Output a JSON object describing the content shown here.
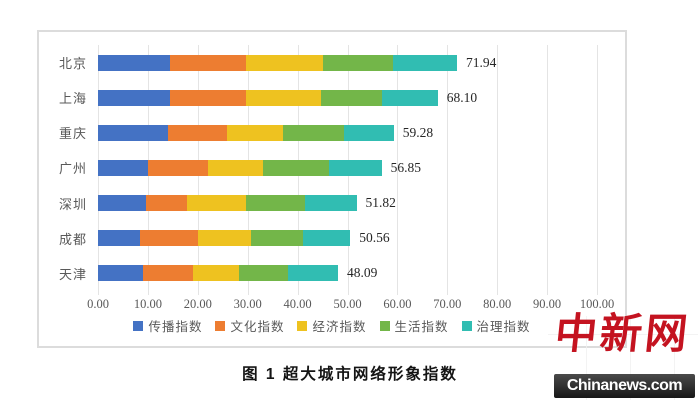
{
  "chart_data": {
    "type": "bar",
    "orientation": "horizontal",
    "stacked": true,
    "categories": [
      "北京",
      "上海",
      "重庆",
      "广州",
      "深圳",
      "成都",
      "天津"
    ],
    "totals": [
      71.94,
      68.1,
      59.28,
      56.85,
      51.82,
      50.56,
      48.09
    ],
    "total_labels": [
      "71.94",
      "68.10",
      "59.28",
      "56.85",
      "51.82",
      "50.56",
      "48.09"
    ],
    "series": [
      {
        "name": "传播指数",
        "color": "#4472C4",
        "values": [
          14.4,
          14.4,
          14.0,
          10.0,
          9.6,
          8.4,
          9.0
        ]
      },
      {
        "name": "文化指数",
        "color": "#ED7D31",
        "values": [
          15.2,
          15.2,
          11.8,
          12.0,
          8.2,
          11.6,
          10.0
        ]
      },
      {
        "name": "经济指数",
        "color": "#EEC220",
        "values": [
          15.4,
          15.0,
          11.2,
          11.0,
          11.8,
          10.6,
          9.2
        ]
      },
      {
        "name": "生活指数",
        "color": "#73B649",
        "values": [
          14.2,
          12.4,
          12.4,
          13.2,
          11.8,
          10.4,
          9.8
        ]
      },
      {
        "name": "治理指数",
        "color": "#31BDB2",
        "values": [
          12.74,
          11.1,
          9.88,
          10.65,
          10.42,
          9.56,
          10.09
        ]
      }
    ],
    "x_ticks": [
      "0.00",
      "10.00",
      "20.00",
      "30.00",
      "40.00",
      "50.00",
      "60.00",
      "70.00",
      "80.00",
      "90.00",
      "100.00"
    ],
    "xlim": [
      0,
      100
    ],
    "grid": true,
    "legend_position": "bottom"
  },
  "caption": {
    "text": "图 1  超大城市网络形象指数"
  },
  "logo": {
    "name": "中新网",
    "domain": "Chinanews.com",
    "accent_red": "#c41320",
    "bar_bg": "#171717"
  }
}
